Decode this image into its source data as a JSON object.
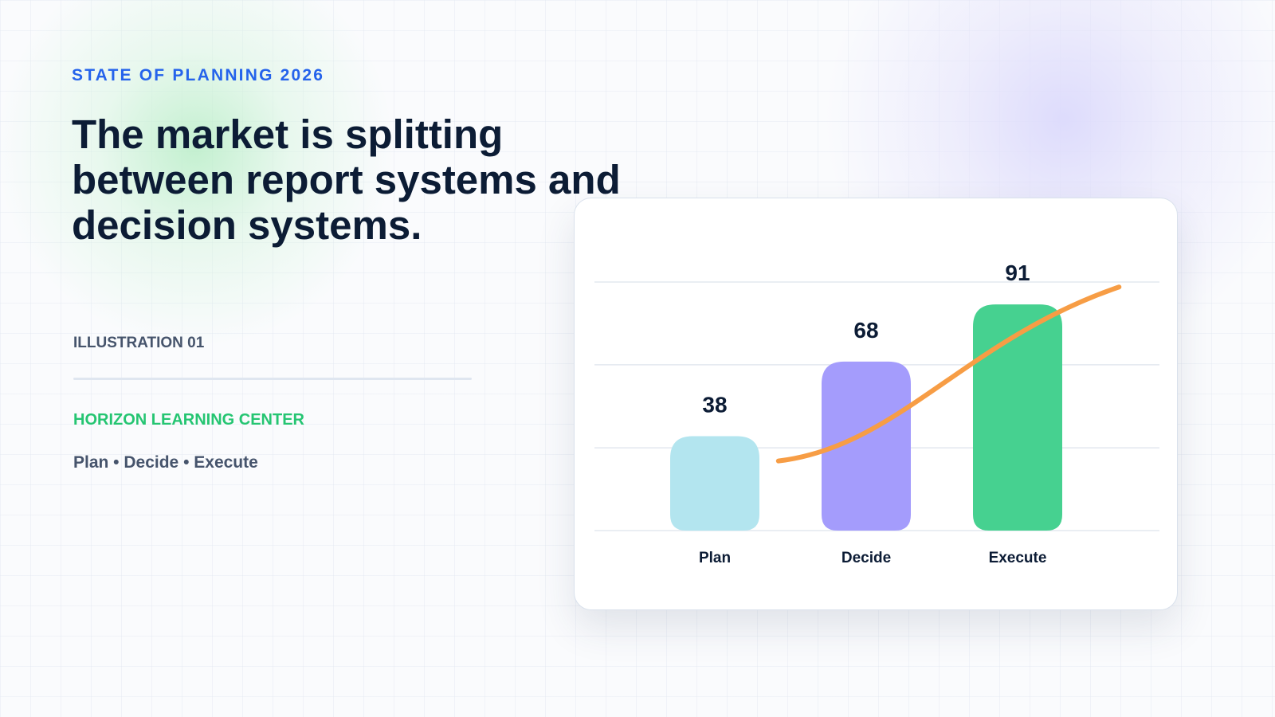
{
  "eyebrow": "STATE OF PLANNING 2026",
  "headline": "The market is splitting between report systems and decision systems.",
  "illustration_label": "ILLUSTRATION 01",
  "organization": "HORIZON LEARNING CENTER",
  "tagline": "Plan • Decide • Execute",
  "colors": {
    "eyebrow": "#2563eb",
    "headline": "#0c1c35",
    "organization": "#25c572",
    "muted_text": "#46546c",
    "trend_line": "#f79d45"
  },
  "chart_data": {
    "type": "bar",
    "categories": [
      "Plan",
      "Decide",
      "Execute"
    ],
    "values": [
      38,
      68,
      91
    ],
    "bar_colors": [
      "#b3e5ef",
      "#a49cfc",
      "#46d190"
    ],
    "data_labels": [
      "38",
      "68",
      "91"
    ],
    "ylim": [
      0,
      100
    ],
    "grid": true,
    "gridlines": [
      0,
      33.3,
      66.7,
      100
    ],
    "trend_line": {
      "type": "line",
      "x": [
        0.42,
        2.67
      ],
      "values": [
        28,
        98
      ],
      "color": "#f79d45"
    },
    "title": "",
    "xlabel": "",
    "ylabel": "",
    "legend": "none"
  }
}
